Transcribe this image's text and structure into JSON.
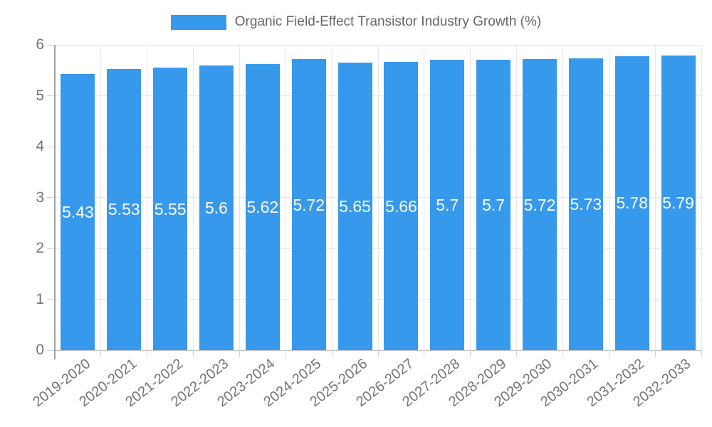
{
  "chart_data": {
    "type": "bar",
    "title": "Organic Field-Effect Transistor Industry Growth (%)",
    "categories": [
      "2019-2020",
      "2020-2021",
      "2021-2022",
      "2022-2023",
      "2023-2024",
      "2024-2025",
      "2025-2026",
      "2026-2027",
      "2027-2028",
      "2028-2029",
      "2029-2030",
      "2030-2031",
      "2031-2032",
      "2032-2033"
    ],
    "values": [
      5.43,
      5.53,
      5.55,
      5.6,
      5.62,
      5.72,
      5.65,
      5.66,
      5.7,
      5.7,
      5.72,
      5.73,
      5.78,
      5.79
    ],
    "bar_labels": [
      "5.43",
      "5.53",
      "5.55",
      "5.6",
      "5.62",
      "5.72",
      "5.65",
      "5.66",
      "5.7",
      "5.7",
      "5.72",
      "5.73",
      "5.78",
      "5.79"
    ],
    "xlabel": "",
    "ylabel": "",
    "ylim": [
      0,
      6
    ],
    "yticks": [
      "0",
      "1",
      "2",
      "3",
      "4",
      "5",
      "6"
    ],
    "grid": true,
    "legend_position": "top",
    "colors": {
      "bar": "#3799EC",
      "bar_label": "#FFFFFF",
      "axis_text": "#757575",
      "legend_text": "#666666",
      "grid": "#E7E7E7",
      "baseline": "#C2C2C2",
      "axis_line": "#A3A3A3",
      "tick": "#D2D2D2",
      "background": "#FFFFFF"
    }
  }
}
